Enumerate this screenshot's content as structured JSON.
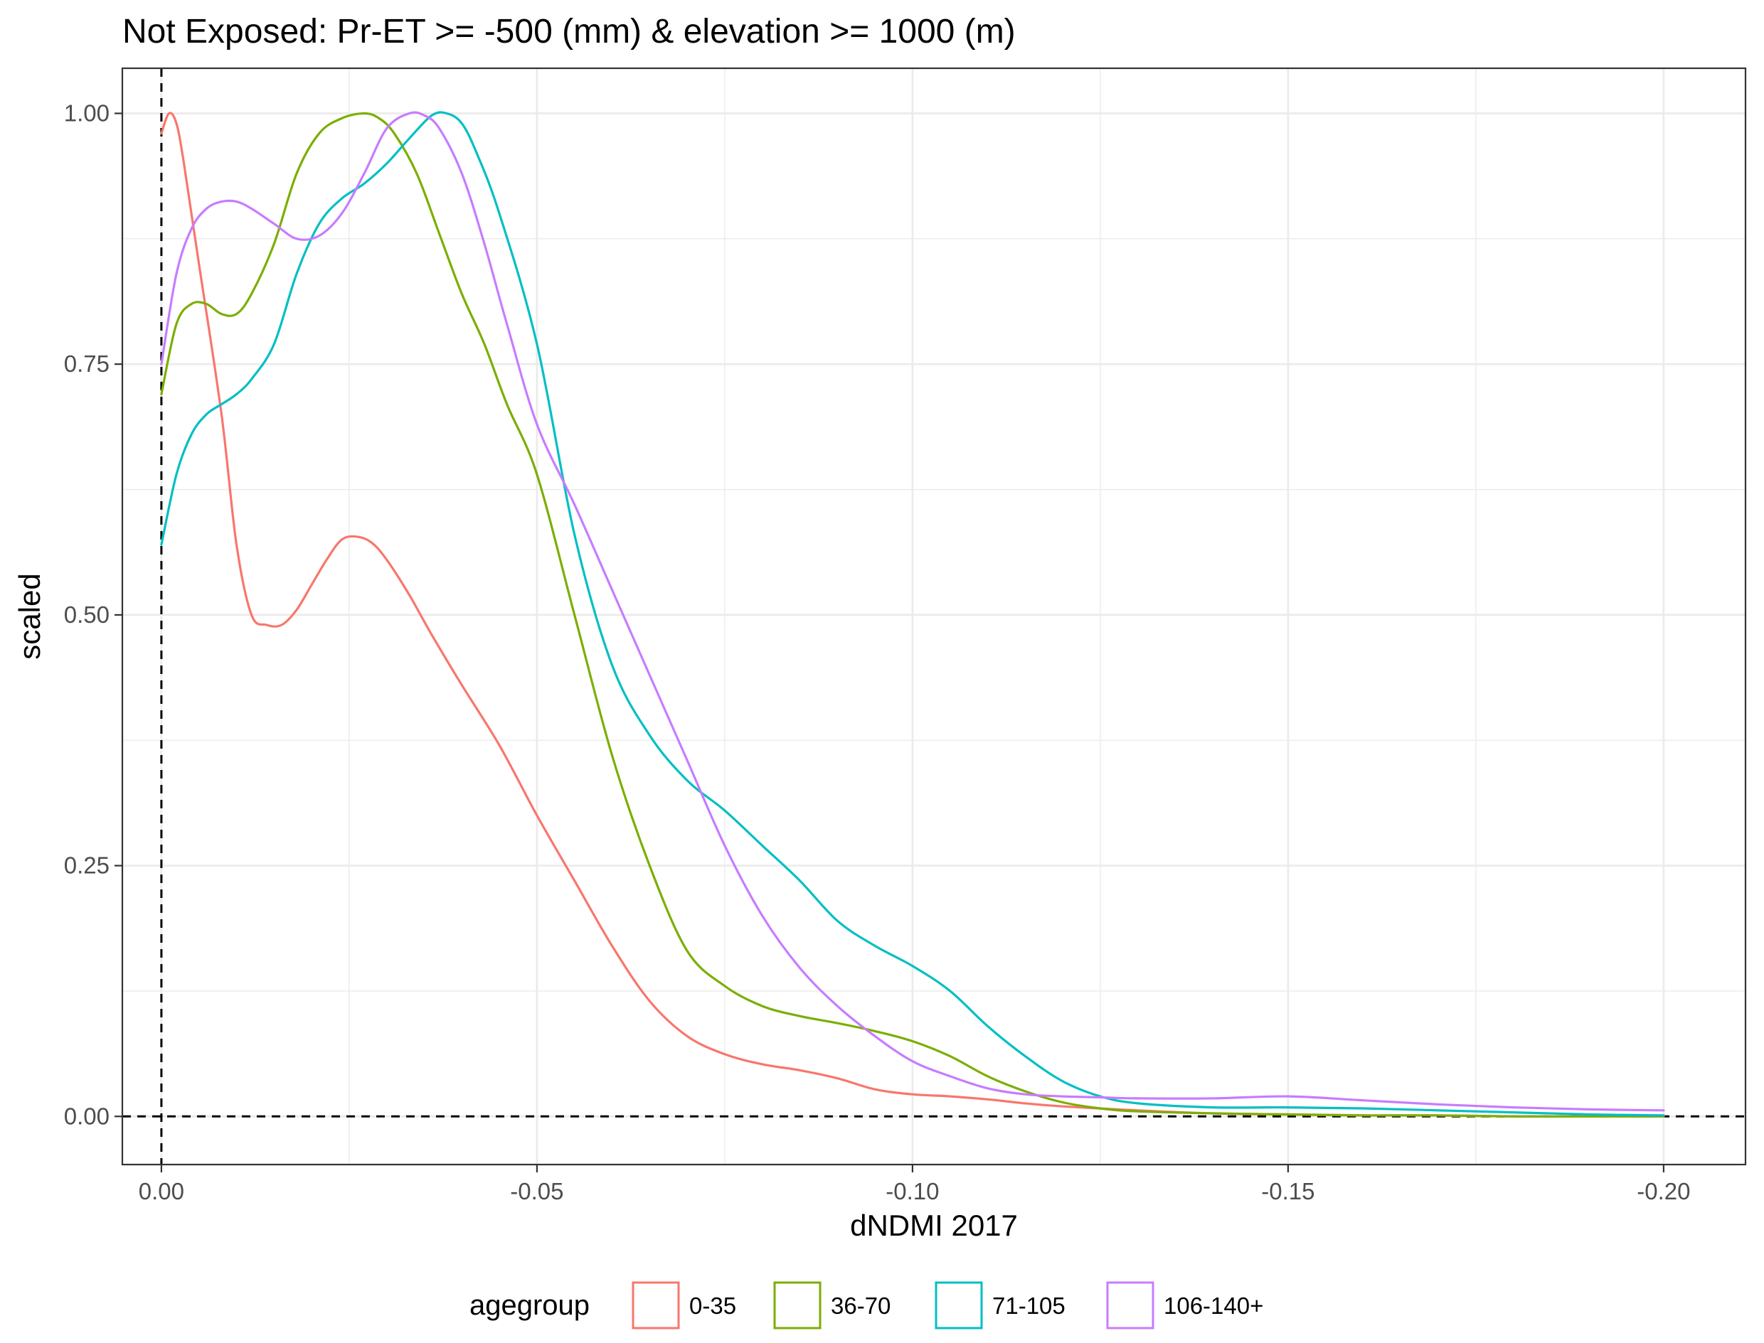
{
  "chart_data": {
    "type": "line",
    "title": "Not Exposed: Pr-ET >= -500 (mm) & elevation >= 1000 (m)",
    "xlabel": "dNDMI 2017",
    "ylabel": "scaled",
    "x_reversed": true,
    "xlim": [
      0.0052,
      -0.2109
    ],
    "ylim": [
      -0.048,
      1.045
    ],
    "x_ticks": [
      0.0,
      -0.05,
      -0.1,
      -0.15,
      -0.2
    ],
    "x_tick_labels": [
      "0.00",
      "-0.05",
      "-0.10",
      "-0.15",
      "-0.20"
    ],
    "y_ticks": [
      0.0,
      0.25,
      0.5,
      0.75,
      1.0
    ],
    "y_tick_labels": [
      "0.00",
      "0.25",
      "0.50",
      "0.75",
      "1.00"
    ],
    "grid": true,
    "reference_lines": [
      {
        "axis": "x",
        "value": 0.0,
        "style": "dashed"
      },
      {
        "axis": "y",
        "value": 0.0,
        "style": "dashed"
      }
    ],
    "legend": {
      "title": "agegroup",
      "position": "bottom"
    },
    "series": [
      {
        "name": "0-35",
        "color": "#f8766d",
        "x": [
          0.0,
          -0.001,
          -0.002,
          -0.003,
          -0.005,
          -0.008,
          -0.01,
          -0.012,
          -0.014,
          -0.016,
          -0.018,
          -0.02,
          -0.022,
          -0.024,
          -0.026,
          -0.028,
          -0.03,
          -0.033,
          -0.036,
          -0.04,
          -0.045,
          -0.05,
          -0.055,
          -0.06,
          -0.065,
          -0.07,
          -0.075,
          -0.08,
          -0.085,
          -0.09,
          -0.095,
          -0.1,
          -0.105,
          -0.11,
          -0.115,
          -0.12,
          -0.13,
          -0.14,
          -0.15,
          -0.16,
          -0.17,
          -0.18,
          -0.19,
          -0.2
        ],
        "y": [
          0.98,
          1.0,
          0.99,
          0.95,
          0.85,
          0.7,
          0.57,
          0.5,
          0.49,
          0.49,
          0.505,
          0.53,
          0.555,
          0.575,
          0.578,
          0.572,
          0.555,
          0.52,
          0.48,
          0.43,
          0.37,
          0.3,
          0.235,
          0.17,
          0.115,
          0.08,
          0.062,
          0.052,
          0.046,
          0.038,
          0.027,
          0.022,
          0.02,
          0.017,
          0.013,
          0.01,
          0.006,
          0.003,
          0.002,
          0.001,
          0.001,
          0.0,
          0.0,
          0.0
        ]
      },
      {
        "name": "36-70",
        "color": "#7cae00",
        "x": [
          0.0,
          -0.002,
          -0.004,
          -0.006,
          -0.008,
          -0.01,
          -0.012,
          -0.015,
          -0.018,
          -0.021,
          -0.024,
          -0.027,
          -0.029,
          -0.031,
          -0.034,
          -0.037,
          -0.04,
          -0.043,
          -0.046,
          -0.05,
          -0.055,
          -0.06,
          -0.065,
          -0.07,
          -0.075,
          -0.08,
          -0.085,
          -0.09,
          -0.095,
          -0.1,
          -0.105,
          -0.11,
          -0.115,
          -0.12,
          -0.125,
          -0.13,
          -0.14,
          -0.15,
          -0.16,
          -0.17,
          -0.18,
          -0.19,
          -0.2
        ],
        "y": [
          0.72,
          0.79,
          0.81,
          0.81,
          0.8,
          0.8,
          0.82,
          0.87,
          0.94,
          0.98,
          0.995,
          1.0,
          0.995,
          0.98,
          0.94,
          0.88,
          0.82,
          0.77,
          0.71,
          0.64,
          0.5,
          0.36,
          0.25,
          0.165,
          0.13,
          0.11,
          0.1,
          0.093,
          0.085,
          0.075,
          0.06,
          0.04,
          0.025,
          0.014,
          0.008,
          0.005,
          0.003,
          0.002,
          0.001,
          0.001,
          0.0,
          0.0,
          0.0
        ]
      },
      {
        "name": "71-105",
        "color": "#00bfc4",
        "x": [
          0.0,
          -0.002,
          -0.004,
          -0.006,
          -0.008,
          -0.01,
          -0.012,
          -0.015,
          -0.018,
          -0.021,
          -0.024,
          -0.027,
          -0.03,
          -0.033,
          -0.036,
          -0.038,
          -0.04,
          -0.042,
          -0.045,
          -0.05,
          -0.055,
          -0.06,
          -0.065,
          -0.07,
          -0.075,
          -0.08,
          -0.085,
          -0.09,
          -0.095,
          -0.1,
          -0.105,
          -0.11,
          -0.115,
          -0.12,
          -0.125,
          -0.13,
          -0.14,
          -0.15,
          -0.16,
          -0.17,
          -0.18,
          -0.19,
          -0.2
        ],
        "y": [
          0.57,
          0.64,
          0.68,
          0.7,
          0.71,
          0.72,
          0.735,
          0.77,
          0.84,
          0.89,
          0.915,
          0.93,
          0.95,
          0.975,
          0.998,
          1.0,
          0.99,
          0.96,
          0.9,
          0.77,
          0.58,
          0.45,
          0.38,
          0.335,
          0.305,
          0.27,
          0.235,
          0.195,
          0.17,
          0.15,
          0.125,
          0.09,
          0.06,
          0.035,
          0.02,
          0.013,
          0.009,
          0.009,
          0.008,
          0.006,
          0.004,
          0.002,
          0.001
        ]
      },
      {
        "name": "106-140+",
        "color": "#c77cff",
        "x": [
          0.0,
          -0.002,
          -0.004,
          -0.006,
          -0.008,
          -0.01,
          -0.012,
          -0.015,
          -0.018,
          -0.021,
          -0.024,
          -0.027,
          -0.03,
          -0.033,
          -0.035,
          -0.037,
          -0.04,
          -0.043,
          -0.046,
          -0.05,
          -0.055,
          -0.06,
          -0.065,
          -0.07,
          -0.075,
          -0.08,
          -0.085,
          -0.09,
          -0.095,
          -0.1,
          -0.105,
          -0.11,
          -0.115,
          -0.12,
          -0.125,
          -0.13,
          -0.14,
          -0.15,
          -0.16,
          -0.17,
          -0.18,
          -0.19,
          -0.2
        ],
        "y": [
          0.75,
          0.84,
          0.885,
          0.905,
          0.912,
          0.912,
          0.905,
          0.89,
          0.875,
          0.878,
          0.9,
          0.94,
          0.985,
          1.0,
          0.998,
          0.985,
          0.94,
          0.87,
          0.79,
          0.69,
          0.61,
          0.525,
          0.44,
          0.355,
          0.27,
          0.2,
          0.148,
          0.11,
          0.08,
          0.055,
          0.04,
          0.028,
          0.022,
          0.02,
          0.019,
          0.018,
          0.018,
          0.02,
          0.016,
          0.012,
          0.009,
          0.007,
          0.006
        ]
      }
    ]
  }
}
